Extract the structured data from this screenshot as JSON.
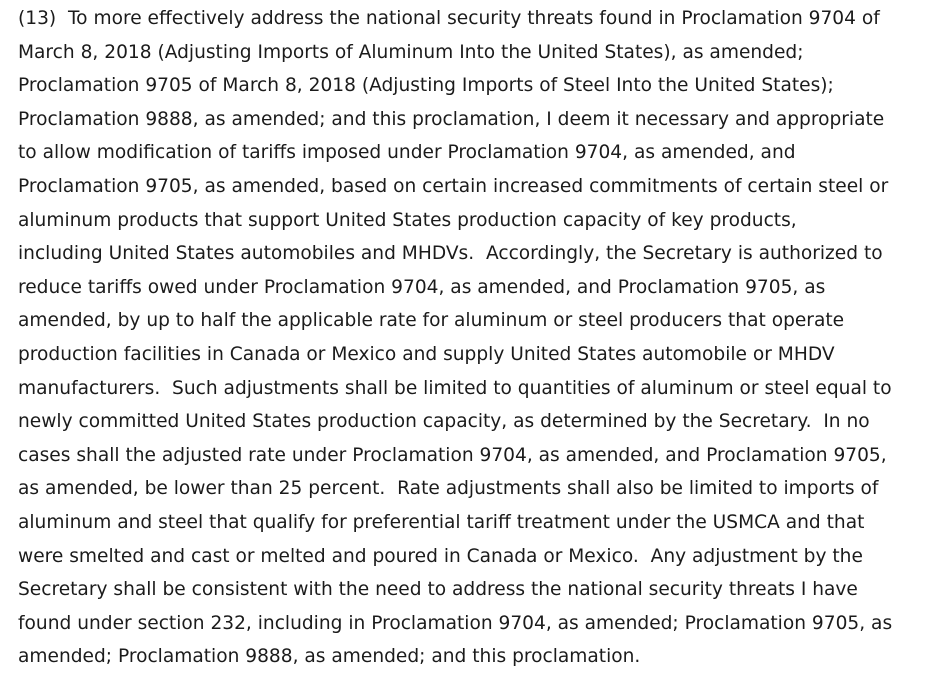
{
  "paragraph": {
    "lines": [
      "(13)  To more effectively address the national security threats found in Proclamation 9704 of",
      "March 8, 2018 (Adjusting Imports of Aluminum Into the United States), as amended;",
      "Proclamation 9705 of March 8, 2018 (Adjusting Imports of Steel Into the United States);",
      "Proclamation 9888, as amended; and this proclamation, I deem it necessary and appropriate",
      "to allow modification of tariffs imposed under Proclamation 9704, as amended, and",
      "Proclamation 9705, as amended, based on certain increased commitments of certain steel or",
      "aluminum products that support United States production capacity of key products,",
      "including United States automobiles and MHDVs.  Accordingly, the Secretary is authorized to",
      "reduce tariffs owed under Proclamation 9704, as amended, and Proclamation 9705, as",
      "amended, by up to half the applicable rate for aluminum or steel producers that operate",
      "production facilities in Canada or Mexico and supply United States automobile or MHDV",
      "manufacturers.  Such adjustments shall be limited to quantities of aluminum or steel equal to",
      "newly committed United States production capacity, as determined by the Secretary.  In no",
      "cases shall the adjusted rate under Proclamation 9704, as amended, and Proclamation 9705,",
      "as amended, be lower than 25 percent.  Rate adjustments shall also be limited to imports of",
      "aluminum and steel that qualify for preferential tariff treatment under the USMCA and that",
      "were smelted and cast or melted and poured in Canada or Mexico.  Any adjustment by the",
      "Secretary shall be consistent with the need to address the national security threats I have",
      "found under section 232, including in Proclamation 9704, as amended; Proclamation 9705, as",
      "amended; Proclamation 9888, as amended; and this proclamation."
    ]
  }
}
